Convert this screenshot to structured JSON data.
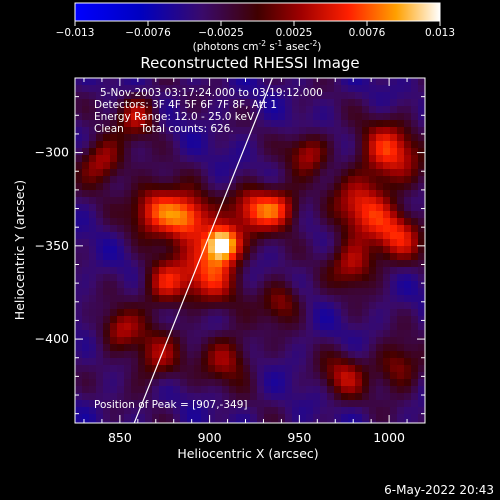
{
  "chart_data": {
    "type": "heatmap",
    "title": "Reconstructed RHESSI Image",
    "xlabel": "Heliocentric X (arcsec)",
    "ylabel": "Heliocentric Y (arcsec)",
    "xlim": [
      825,
      1020
    ],
    "ylim": [
      -445,
      -260
    ],
    "xticks": [
      850,
      900,
      950,
      1000
    ],
    "yticks": [
      -300,
      -350,
      -400
    ],
    "colorbar": {
      "ticks": [
        "-0.013",
        "-0.0076",
        "-0.0025",
        "0.0025",
        "0.0076",
        "0.013"
      ],
      "range": [
        -0.013,
        0.013
      ],
      "label_parts": [
        "(photons cm",
        "-2",
        " s",
        "-1",
        " asec",
        "-2",
        ")"
      ]
    },
    "annotations": [
      "5-Nov-2003 03:17:24.000 to 03:19:12.000",
      "Detectors: 3F 4F 5F 6F 7F 8F, Att 1",
      "Energy Range: 12.0 - 25.0 keV",
      "Clean     Total counts: 626.",
      "Position of Peak = [907,-349]"
    ],
    "peak": {
      "x": 907,
      "y": -349,
      "value": 0.013
    },
    "sources": [
      {
        "x": 907,
        "y": -349,
        "value": 0.013,
        "sigma": 7
      },
      {
        "x": 888,
        "y": -335,
        "value": 0.0085,
        "sigma": 9
      },
      {
        "x": 870,
        "y": -330,
        "value": 0.0065,
        "sigma": 10
      },
      {
        "x": 925,
        "y": -330,
        "value": 0.006,
        "sigma": 9
      },
      {
        "x": 900,
        "y": -365,
        "value": 0.0055,
        "sigma": 12
      },
      {
        "x": 875,
        "y": -370,
        "value": 0.005,
        "sigma": 9
      },
      {
        "x": 940,
        "y": -330,
        "value": 0.0045,
        "sigma": 8
      },
      {
        "x": 1000,
        "y": -300,
        "value": 0.006,
        "sigma": 12
      },
      {
        "x": 985,
        "y": -330,
        "value": 0.005,
        "sigma": 12
      },
      {
        "x": 1005,
        "y": -345,
        "value": 0.0045,
        "sigma": 10
      },
      {
        "x": 980,
        "y": -360,
        "value": 0.004,
        "sigma": 9
      },
      {
        "x": 840,
        "y": -305,
        "value": 0.0045,
        "sigma": 9
      },
      {
        "x": 850,
        "y": -395,
        "value": 0.0035,
        "sigma": 8
      },
      {
        "x": 870,
        "y": -410,
        "value": 0.003,
        "sigma": 10
      },
      {
        "x": 910,
        "y": -410,
        "value": 0.003,
        "sigma": 10
      },
      {
        "x": 940,
        "y": -380,
        "value": 0.003,
        "sigma": 8
      },
      {
        "x": 975,
        "y": -420,
        "value": 0.003,
        "sigma": 9
      },
      {
        "x": 1005,
        "y": -415,
        "value": 0.003,
        "sigma": 9
      },
      {
        "x": 860,
        "y": -280,
        "value": 0.004,
        "sigma": 8
      },
      {
        "x": 955,
        "y": -300,
        "value": 0.0035,
        "sigma": 8
      }
    ],
    "limb_line": [
      [
        858,
        -445
      ],
      [
        935,
        -260
      ]
    ],
    "timestamp": "6-May-2022 20:43"
  }
}
